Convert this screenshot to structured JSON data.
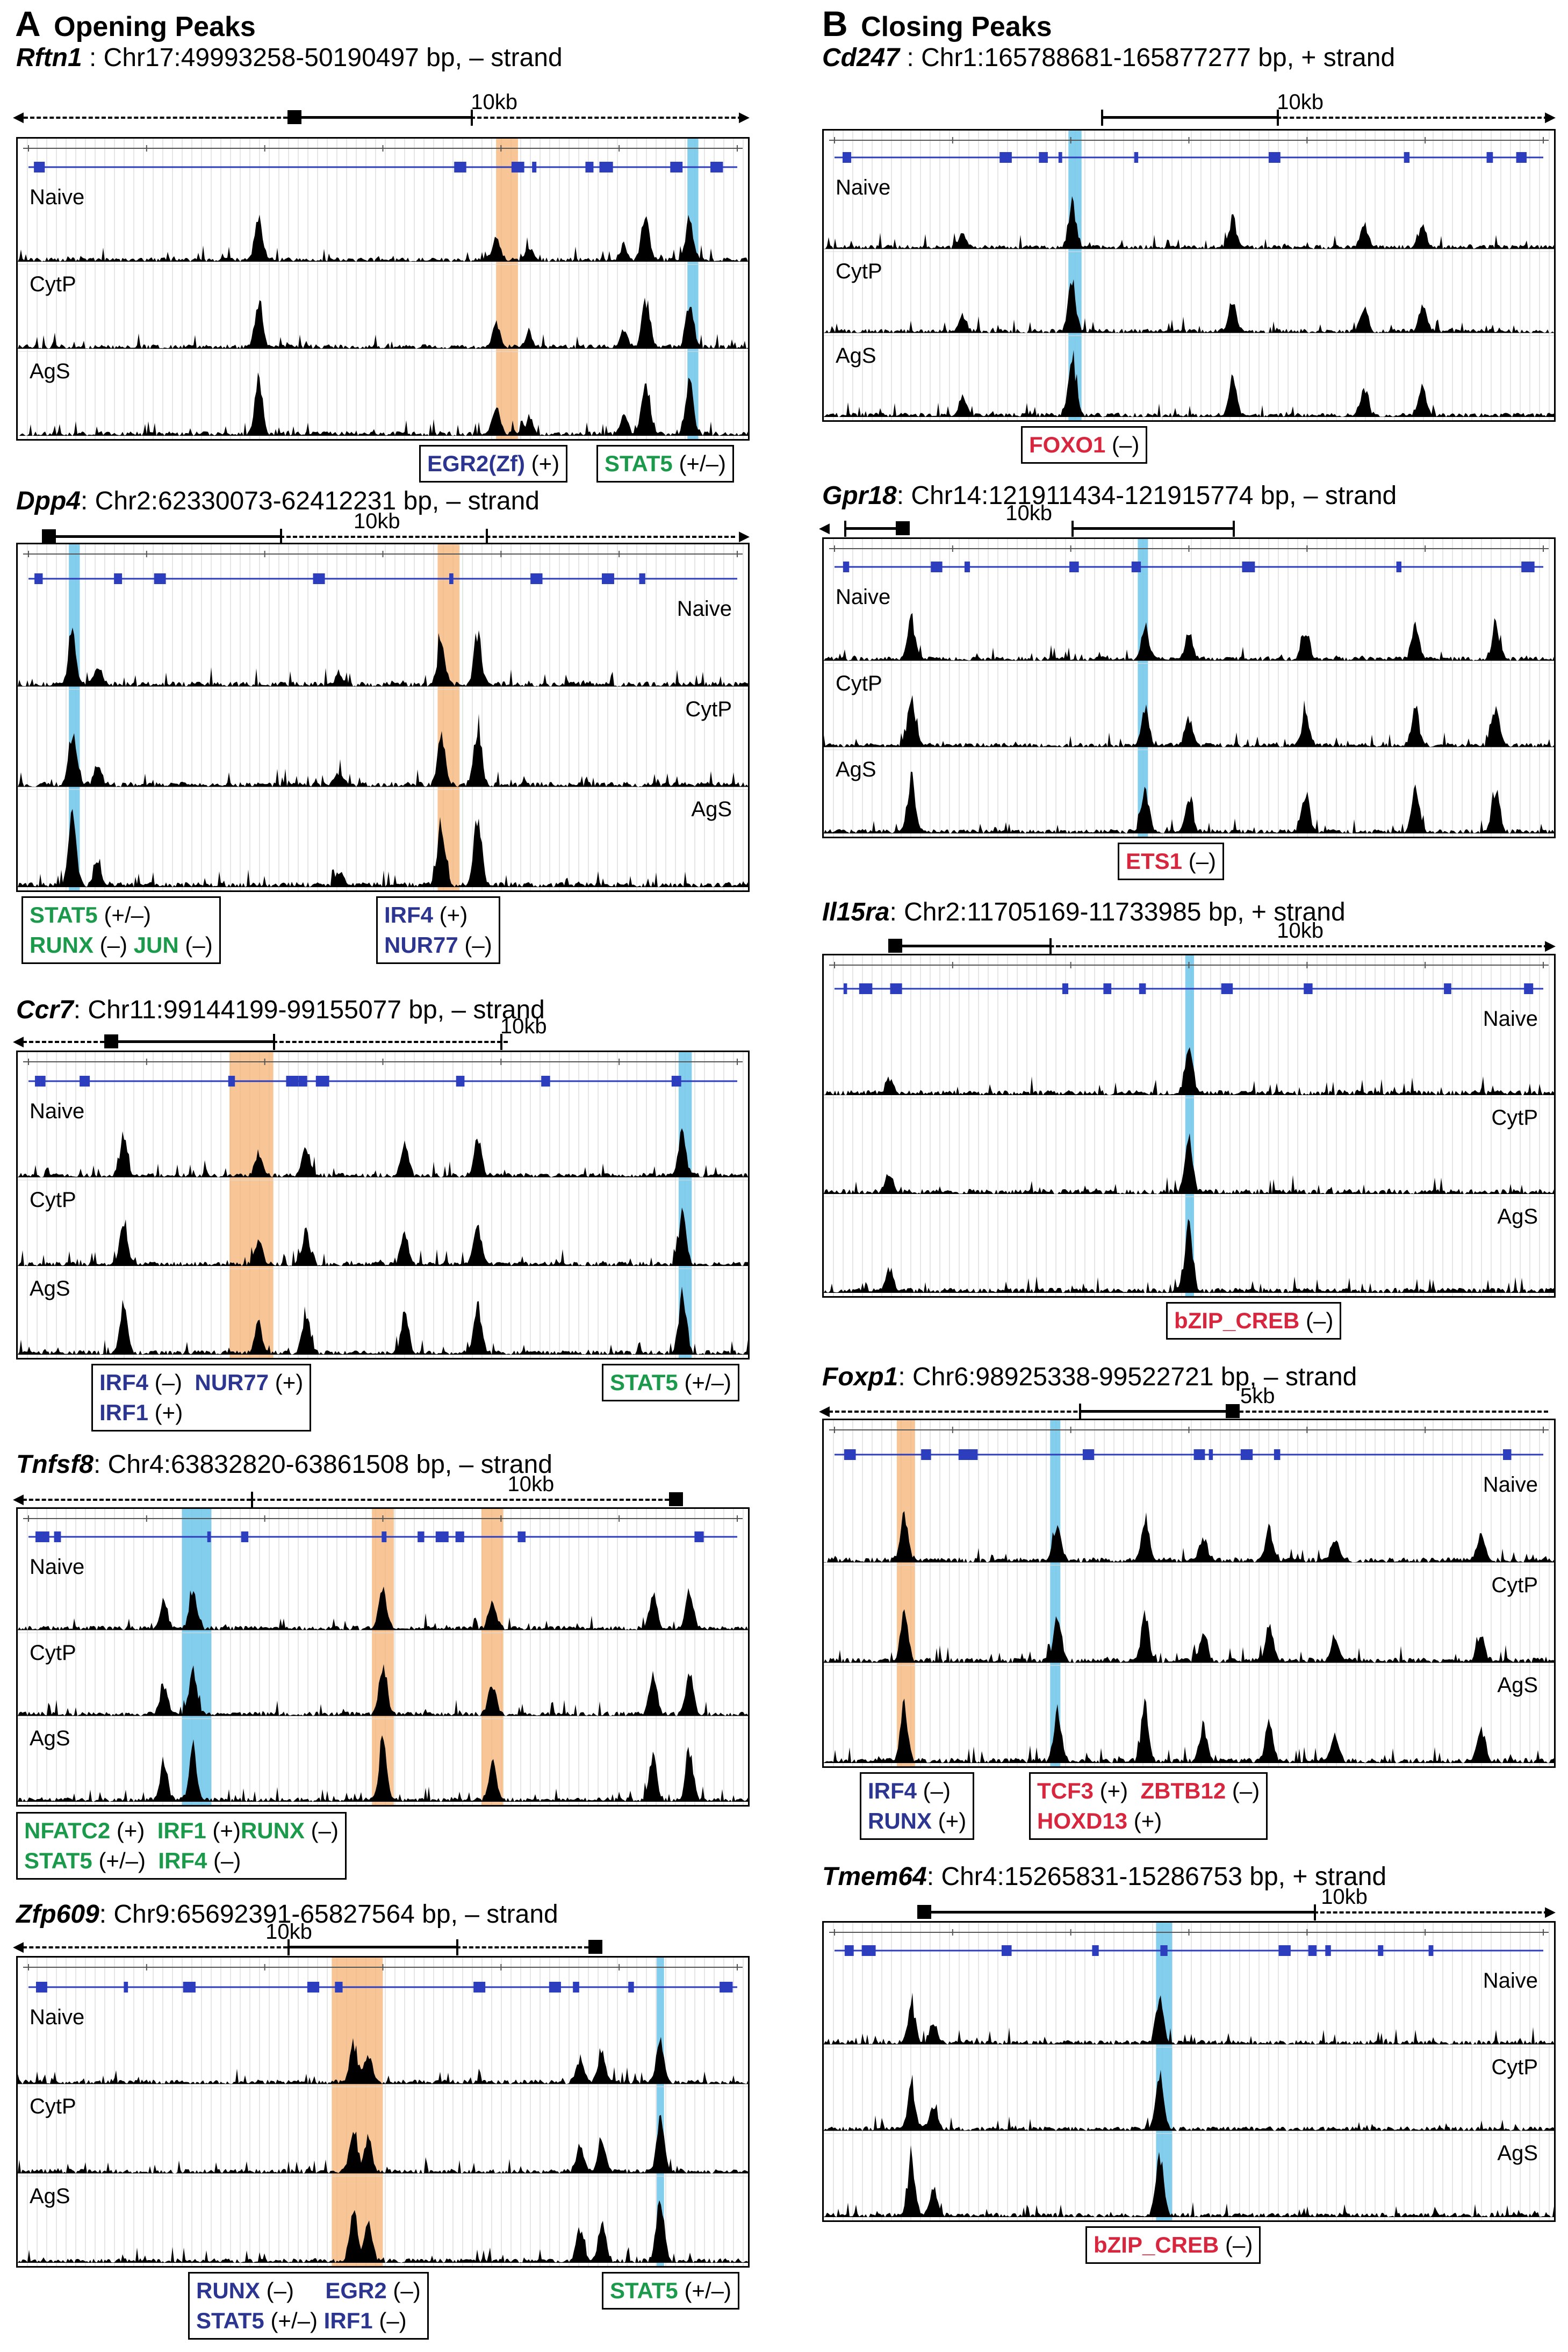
{
  "figure": {
    "section_a": {
      "letter": "A",
      "title": "Opening Peaks"
    },
    "section_b": {
      "letter": "B",
      "title": "Closing Peaks"
    },
    "track_names": [
      "Naive",
      "CytP",
      "AgS"
    ],
    "scale_labels": {
      "tenkb": "10kb",
      "fivekb": "5kb"
    },
    "colors": {
      "blue_tf": "#2c3590",
      "green_tf": "#1a9a4a",
      "red_tf": "#d7263d",
      "orange_highlight": "#f4b273",
      "blue_highlight": "#6ec6ea",
      "gene_model": "#2c3dbd"
    }
  },
  "panels": [
    {
      "id": "rftn1",
      "gene": "Rftn1",
      "coords": " : Chr17:49993258-50190497 bp, – strand",
      "scale": "10kb",
      "legends": [
        {
          "lines": [
            [
              {
                "t": "EGR2(Zf)",
                "c": "blue"
              },
              {
                "t": " (+)",
                "c": "sign"
              }
            ]
          ]
        },
        {
          "lines": [
            [
              {
                "t": "STAT5",
                "c": "green"
              },
              {
                "t": " (+/–)",
                "c": "sign"
              }
            ]
          ]
        }
      ]
    },
    {
      "id": "dpp4",
      "gene": "Dpp4",
      "coords": ": Chr2:62330073-62412231 bp, – strand",
      "scale": "10kb",
      "legends": [
        {
          "lines": [
            [
              {
                "t": "STAT5",
                "c": "green"
              },
              {
                "t": " (+/–)",
                "c": "sign"
              }
            ],
            [
              {
                "t": "RUNX",
                "c": "green"
              },
              {
                "t": " (–) ",
                "c": "sign"
              },
              {
                "t": "JUN",
                "c": "green"
              },
              {
                "t": " (–)",
                "c": "sign"
              }
            ]
          ]
        },
        {
          "lines": [
            [
              {
                "t": "IRF4",
                "c": "blue"
              },
              {
                "t": " (+)",
                "c": "sign"
              }
            ],
            [
              {
                "t": "NUR77",
                "c": "blue"
              },
              {
                "t": " (–)",
                "c": "sign"
              }
            ]
          ]
        }
      ]
    },
    {
      "id": "ccr7",
      "gene": "Ccr7",
      "coords": ": Chr11:99144199-99155077 bp, – strand",
      "scale": "10kb",
      "legends": [
        {
          "lines": [
            [
              {
                "t": "IRF4",
                "c": "blue"
              },
              {
                "t": " (–)  ",
                "c": "sign"
              },
              {
                "t": "NUR77",
                "c": "blue"
              },
              {
                "t": " (+)",
                "c": "sign"
              }
            ],
            [
              {
                "t": "IRF1",
                "c": "blue"
              },
              {
                "t": " (+)",
                "c": "sign"
              }
            ]
          ]
        },
        {
          "lines": [
            [
              {
                "t": "STAT5",
                "c": "green"
              },
              {
                "t": " (+/–)",
                "c": "sign"
              }
            ]
          ]
        }
      ]
    },
    {
      "id": "tnfsf8",
      "gene": "Tnfsf8",
      "coords": ": Chr4:63832820-63861508 bp, – strand",
      "scale": "10kb",
      "legends": [
        {
          "lines": [
            [
              {
                "t": "NFATC2",
                "c": "green"
              },
              {
                "t": " (+)  ",
                "c": "sign"
              },
              {
                "t": "IRF1",
                "c": "green"
              },
              {
                "t": " (+)",
                "c": "sign"
              },
              {
                "t": "RUNX",
                "c": "green"
              },
              {
                "t": " (–)",
                "c": "sign"
              }
            ],
            [
              {
                "t": "STAT5",
                "c": "green"
              },
              {
                "t": " (+/–)  ",
                "c": "sign"
              },
              {
                "t": "IRF4",
                "c": "green"
              },
              {
                "t": " (–)",
                "c": "sign"
              }
            ]
          ]
        }
      ]
    },
    {
      "id": "zfp609",
      "gene": "Zfp609",
      "coords": ": Chr9:65692391-65827564 bp, – strand",
      "scale": "10kb",
      "legends": [
        {
          "lines": [
            [
              {
                "t": "RUNX",
                "c": "blue"
              },
              {
                "t": " (–)     ",
                "c": "sign"
              },
              {
                "t": "EGR2",
                "c": "blue"
              },
              {
                "t": " (–)",
                "c": "sign"
              }
            ],
            [
              {
                "t": "STAT5",
                "c": "blue"
              },
              {
                "t": " (+/–) ",
                "c": "sign"
              },
              {
                "t": "IRF1",
                "c": "blue"
              },
              {
                "t": " (–)",
                "c": "sign"
              }
            ]
          ]
        },
        {
          "lines": [
            [
              {
                "t": "STAT5",
                "c": "green"
              },
              {
                "t": " (+/–)",
                "c": "sign"
              }
            ]
          ]
        }
      ]
    },
    {
      "id": "cd247",
      "gene": "Cd247",
      "coords": " : Chr1:165788681-165877277 bp, + strand",
      "scale": "10kb",
      "legends": [
        {
          "lines": [
            [
              {
                "t": "FOXO1",
                "c": "red"
              },
              {
                "t": " (–)",
                "c": "sign"
              }
            ]
          ]
        }
      ]
    },
    {
      "id": "gpr18",
      "gene": "Gpr18",
      "coords": ": Chr14:121911434-121915774 bp, – strand",
      "scale": "10kb",
      "legends": [
        {
          "lines": [
            [
              {
                "t": "ETS1",
                "c": "red"
              },
              {
                "t": " (–)",
                "c": "sign"
              }
            ]
          ]
        }
      ]
    },
    {
      "id": "il15ra",
      "gene": "Il15ra",
      "coords": ": Chr2:11705169-11733985 bp, + strand",
      "scale": "10kb",
      "legends": [
        {
          "lines": [
            [
              {
                "t": "bZIP_CREB",
                "c": "red"
              },
              {
                "t": " (–)",
                "c": "sign"
              }
            ]
          ]
        }
      ]
    },
    {
      "id": "foxp1",
      "gene": "Foxp1",
      "coords": ": Chr6:98925338-99522721 bp, – strand",
      "scale": "5kb",
      "legends": [
        {
          "lines": [
            [
              {
                "t": "IRF4",
                "c": "blue"
              },
              {
                "t": " (–)",
                "c": "sign"
              }
            ],
            [
              {
                "t": "RUNX",
                "c": "blue"
              },
              {
                "t": " (+)",
                "c": "sign"
              }
            ]
          ]
        },
        {
          "lines": [
            [
              {
                "t": "TCF3",
                "c": "red"
              },
              {
                "t": " (+)  ",
                "c": "sign"
              },
              {
                "t": "ZBTB12",
                "c": "red"
              },
              {
                "t": " (–)",
                "c": "sign"
              }
            ],
            [
              {
                "t": "HOXD13",
                "c": "red"
              },
              {
                "t": " (+)",
                "c": "sign"
              }
            ]
          ]
        }
      ]
    },
    {
      "id": "tmem64",
      "gene": "Tmem64",
      "coords": ": Chr4:15265831-15286753 bp, + strand",
      "scale": "10kb",
      "legends": [
        {
          "lines": [
            [
              {
                "t": "bZIP_CREB",
                "c": "red"
              },
              {
                "t": " (–)",
                "c": "sign"
              }
            ]
          ]
        }
      ]
    }
  ]
}
